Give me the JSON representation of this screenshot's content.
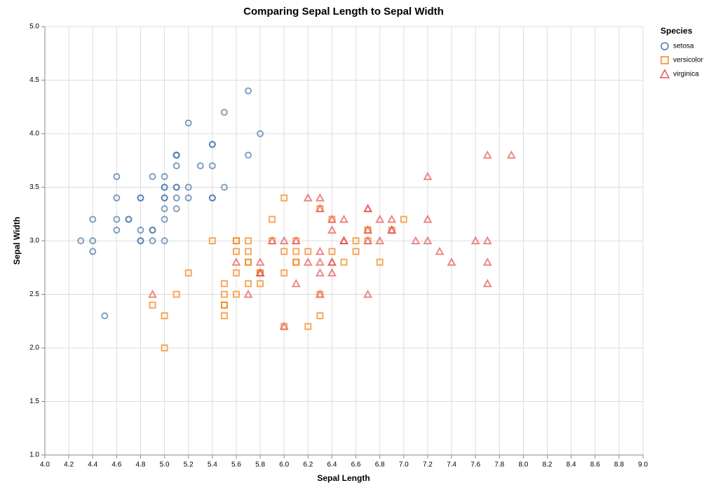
{
  "chart_data": {
    "type": "scatter",
    "title": "Comparing Sepal Length to Sepal Width",
    "x_label": "Sepal Length",
    "y_label": "Sepal Width",
    "legend_title": "Species",
    "legend_position": "right",
    "grid": true,
    "xlim": [
      4.0,
      9.0
    ],
    "xticks": [
      {
        "value": 4.0,
        "label": "4.0"
      },
      4.2,
      4.4,
      4.6,
      4.8,
      {
        "value": 5.0,
        "label": "5.0"
      },
      5.2,
      5.4,
      5.6,
      5.8,
      {
        "value": 6.0,
        "label": "6.0"
      },
      6.2,
      6.4,
      6.6,
      6.8,
      {
        "value": 7.0,
        "label": "7.0"
      },
      7.2,
      7.4,
      7.6,
      7.8,
      {
        "value": 8.0,
        "label": "8.0"
      },
      8.2,
      8.4,
      8.6,
      8.8,
      {
        "value": 9.0,
        "label": "9.0"
      }
    ],
    "ylim": [
      1.0,
      5.0
    ],
    "yticks": [
      {
        "value": 1.0,
        "label": "1.0"
      },
      1.5,
      {
        "value": 2.0,
        "label": "2.0"
      },
      2.5,
      {
        "value": 3.0,
        "label": "3.0"
      },
      3.5,
      {
        "value": 4.0,
        "label": "4.0"
      },
      4.5,
      {
        "value": 5.0,
        "label": "5.0"
      }
    ],
    "series": [
      {
        "name": "setosa",
        "color": "#4c78a8",
        "marker": "circle",
        "x": [
          5.1,
          4.9,
          4.7,
          4.6,
          5.0,
          5.4,
          4.6,
          5.0,
          4.4,
          4.9,
          5.4,
          4.8,
          4.8,
          4.3,
          5.8,
          5.7,
          5.4,
          5.1,
          5.7,
          5.1,
          5.4,
          5.1,
          4.6,
          5.1,
          4.8,
          5.0,
          5.0,
          5.2,
          5.2,
          4.7,
          4.8,
          5.4,
          5.2,
          5.5,
          4.9,
          5.0,
          5.5,
          4.9,
          4.4,
          5.1,
          5.0,
          4.5,
          4.4,
          5.0,
          5.1,
          4.8,
          5.1,
          4.6,
          5.3,
          5.0
        ],
        "values": [
          3.5,
          3.0,
          3.2,
          3.1,
          3.6,
          3.9,
          3.4,
          3.4,
          2.9,
          3.1,
          3.7,
          3.4,
          3.0,
          3.0,
          4.0,
          4.4,
          3.9,
          3.5,
          3.8,
          3.8,
          3.4,
          3.7,
          3.6,
          3.3,
          3.4,
          3.0,
          3.4,
          3.5,
          3.4,
          3.2,
          3.1,
          3.4,
          4.1,
          4.2,
          3.1,
          3.2,
          3.5,
          3.6,
          3.0,
          3.4,
          3.5,
          2.3,
          3.2,
          3.5,
          3.8,
          3.0,
          3.8,
          3.2,
          3.7,
          3.3
        ]
      },
      {
        "name": "versicolor",
        "color": "#f58518",
        "marker": "square",
        "x": [
          7.0,
          6.4,
          6.9,
          5.5,
          6.5,
          5.7,
          6.3,
          4.9,
          6.6,
          5.2,
          5.0,
          5.9,
          6.0,
          6.1,
          5.6,
          6.7,
          5.6,
          5.8,
          6.2,
          5.6,
          5.9,
          6.1,
          6.3,
          6.1,
          6.4,
          6.6,
          6.8,
          6.7,
          6.0,
          5.7,
          5.5,
          5.5,
          5.8,
          6.0,
          5.4,
          6.0,
          6.7,
          6.3,
          5.6,
          5.5,
          5.5,
          6.1,
          5.8,
          5.0,
          5.6,
          5.7,
          5.7,
          6.2,
          5.1,
          5.7
        ],
        "values": [
          3.2,
          3.2,
          3.1,
          2.3,
          2.8,
          2.8,
          3.3,
          2.4,
          2.9,
          2.7,
          2.0,
          3.0,
          2.2,
          2.9,
          2.9,
          3.1,
          3.0,
          2.7,
          2.2,
          2.5,
          3.2,
          2.8,
          2.5,
          2.8,
          2.9,
          3.0,
          2.8,
          3.0,
          2.9,
          2.6,
          2.4,
          2.4,
          2.7,
          2.7,
          3.0,
          3.4,
          3.1,
          2.3,
          3.0,
          2.5,
          2.6,
          3.0,
          2.6,
          2.3,
          2.7,
          3.0,
          2.9,
          2.9,
          2.5,
          2.8
        ]
      },
      {
        "name": "virginica",
        "color": "#e45756",
        "marker": "triangle",
        "x": [
          6.3,
          5.8,
          7.1,
          6.3,
          6.5,
          7.6,
          4.9,
          7.3,
          6.7,
          7.2,
          6.5,
          6.4,
          6.8,
          5.7,
          5.8,
          6.4,
          6.5,
          7.7,
          7.7,
          6.0,
          6.9,
          5.6,
          7.7,
          6.3,
          6.7,
          7.2,
          6.2,
          6.1,
          6.4,
          7.2,
          7.4,
          7.9,
          6.4,
          6.3,
          6.1,
          7.7,
          6.3,
          6.4,
          6.0,
          6.9,
          6.7,
          6.9,
          5.8,
          6.8,
          6.7,
          6.7,
          6.3,
          6.5,
          6.2,
          5.9
        ],
        "values": [
          3.3,
          2.7,
          3.0,
          2.9,
          3.0,
          3.0,
          2.5,
          2.9,
          2.5,
          3.6,
          3.2,
          2.7,
          3.0,
          2.5,
          2.8,
          3.2,
          3.0,
          3.8,
          2.6,
          2.2,
          3.2,
          2.8,
          2.8,
          2.7,
          3.3,
          3.2,
          2.8,
          3.0,
          2.8,
          3.0,
          2.8,
          3.8,
          2.8,
          2.8,
          2.6,
          3.0,
          3.4,
          3.1,
          3.0,
          3.1,
          3.1,
          3.1,
          2.7,
          3.2,
          3.3,
          3.0,
          2.5,
          3.0,
          3.4,
          3.0
        ]
      }
    ]
  }
}
